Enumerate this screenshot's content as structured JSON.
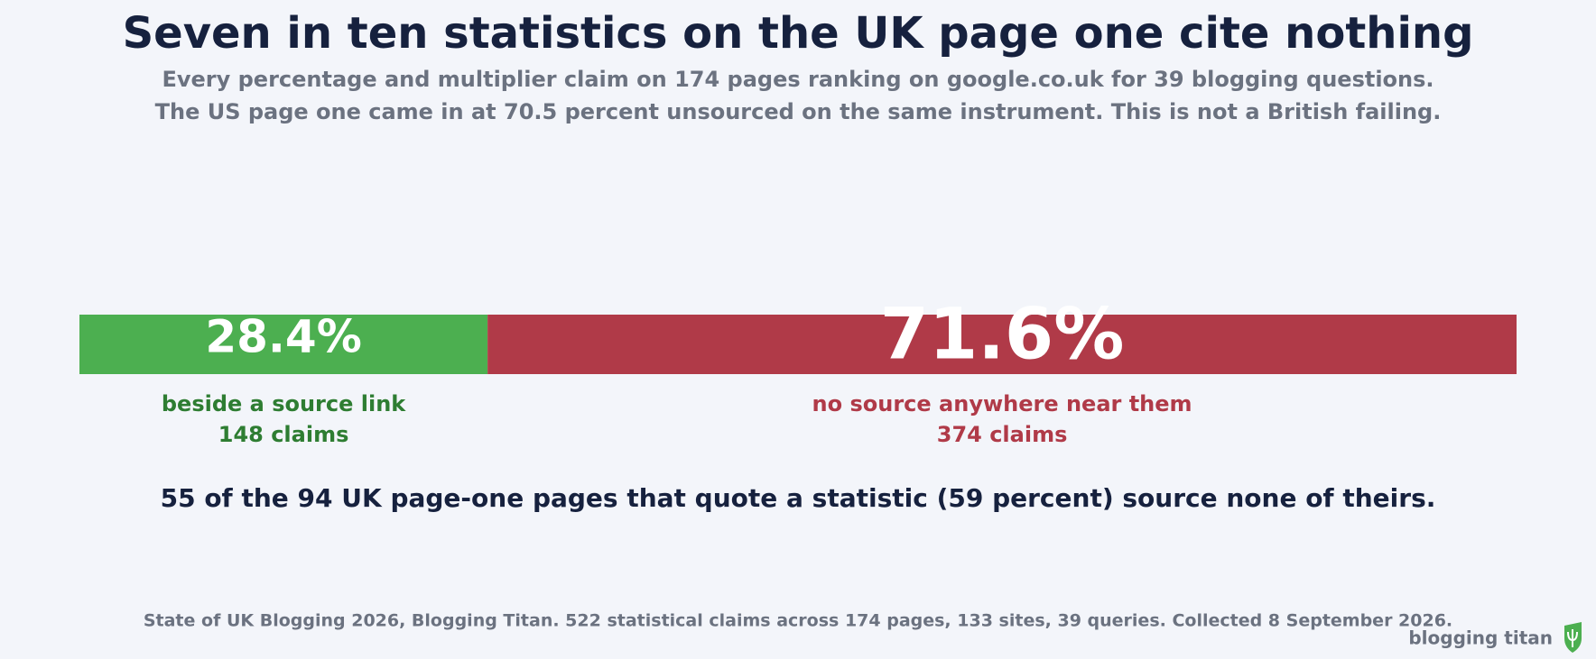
{
  "chart_data": {
    "type": "stacked_bar",
    "title": "Seven in ten statistics on the UK page one cite nothing",
    "subtitle": [
      "Every percentage and multiplier claim on 174 pages ranking on google.co.uk for 39 blogging questions.",
      "The US page one came in at 70.5 percent unsourced on the same instrument. This is not a British failing."
    ],
    "xlim": [
      0,
      100
    ],
    "series": [
      {
        "name": "beside a source link",
        "color": "#4caf50",
        "label_color": "#2e7d32",
        "values": [
          28.4
        ],
        "value_labels": [
          "28.4%"
        ],
        "count_label": "148 claims"
      },
      {
        "name": "no source anywhere near them",
        "color": "#b03a48",
        "label_color": "#b03a48",
        "values": [
          71.6
        ],
        "value_labels": [
          "71.6%"
        ],
        "count_label": "374 claims"
      }
    ],
    "note": "55 of the 94 UK page-one pages that quote a statistic (59 percent) source none of theirs.",
    "source": "State of UK Blogging 2026, Blogging Titan. 522 statistical claims across 174 pages, 133 sites, 39 queries. Collected 8 September 2026.",
    "brand": "blogging titan"
  }
}
